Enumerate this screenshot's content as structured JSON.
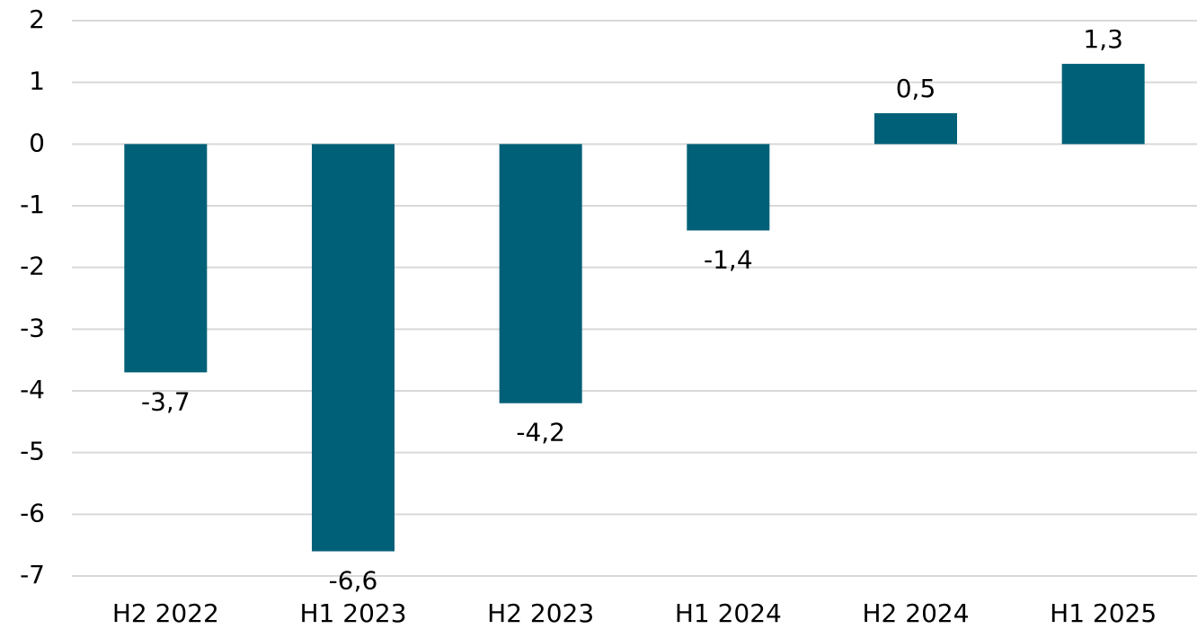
{
  "chart_data": {
    "type": "bar",
    "categories": [
      "H2 2022",
      "H1 2023",
      "H2 2023",
      "H1 2024",
      "H2 2024",
      "H1 2025"
    ],
    "values": [
      -3.7,
      -6.6,
      -4.2,
      -1.4,
      0.5,
      1.3
    ],
    "value_labels": [
      "-3,7",
      "-6,6",
      "-4,2",
      "-1,4",
      "0,5",
      "1,3"
    ],
    "color": "#006078",
    "ylim": [
      -7,
      2
    ],
    "yticks": [
      -7,
      -6,
      -5,
      -4,
      -3,
      -2,
      -1,
      0,
      1,
      2
    ],
    "grid": true
  }
}
